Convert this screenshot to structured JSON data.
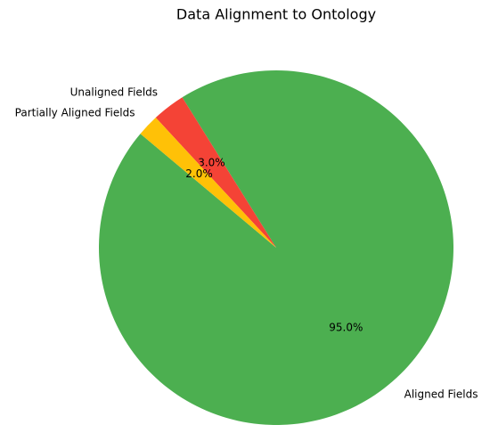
{
  "chart_data": {
    "type": "pie",
    "title": "Data Alignment to Ontology",
    "categories": [
      "Aligned Fields",
      "Unaligned Fields",
      "Partially Aligned Fields"
    ],
    "values": [
      95,
      3,
      2
    ],
    "value_labels": [
      "95.0%",
      "3.0%",
      "2.0%"
    ],
    "colors": [
      "#4caf50",
      "#f44336",
      "#ffc107"
    ]
  }
}
